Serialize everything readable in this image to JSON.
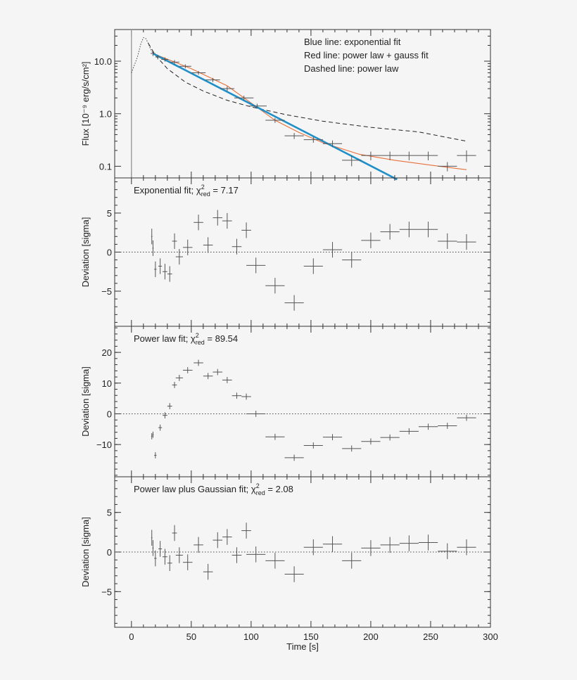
{
  "chart_data": [
    {
      "type": "line",
      "panel": "flux",
      "ylabel": "Flux [10⁻⁹ erg/s/cm²]",
      "y_scale": "log",
      "ylim": [
        0.06,
        40
      ],
      "xlim": [
        -14,
        300
      ],
      "yticks": [
        {
          "v": 0.1,
          "label": "0.1"
        },
        {
          "v": 1.0,
          "label": "1.0"
        },
        {
          "v": 10.0,
          "label": "10.0"
        }
      ],
      "legend": [
        "Blue line: exponential fit",
        "Red line: power law + gauss fit",
        "Dashed line: power law"
      ],
      "legend_placement": "top-right",
      "colors": {
        "exponential": "#1e8fc8",
        "powerlaw_gauss": "#e8703a",
        "powerlaw": "#222222",
        "data": "#444444"
      },
      "data": [
        {
          "x": 18,
          "xerr": 2,
          "y": 14.0,
          "yerr": 1.5
        },
        {
          "x": 22,
          "xerr": 2,
          "y": 12.0,
          "yerr": 1.2
        },
        {
          "x": 28,
          "xerr": 3,
          "y": 10.8,
          "yerr": 1.0
        },
        {
          "x": 36,
          "xerr": 4,
          "y": 9.6,
          "yerr": 0.9
        },
        {
          "x": 45,
          "xerr": 5,
          "y": 8.0,
          "yerr": 0.7
        },
        {
          "x": 56,
          "xerr": 6,
          "y": 6.0,
          "yerr": 0.5
        },
        {
          "x": 68,
          "xerr": 6,
          "y": 4.4,
          "yerr": 0.4
        },
        {
          "x": 80,
          "xerr": 6,
          "y": 3.0,
          "yerr": 0.3
        },
        {
          "x": 94,
          "xerr": 8,
          "y": 2.0,
          "yerr": 0.2
        },
        {
          "x": 105,
          "xerr": 8,
          "y": 1.4,
          "yerr": 0.15
        },
        {
          "x": 120,
          "xerr": 8,
          "y": 0.75,
          "yerr": 0.08
        },
        {
          "x": 136,
          "xerr": 8,
          "y": 0.38,
          "yerr": 0.05
        },
        {
          "x": 152,
          "xerr": 8,
          "y": 0.32,
          "yerr": 0.04
        },
        {
          "x": 168,
          "xerr": 8,
          "y": 0.27,
          "yerr": 0.04
        },
        {
          "x": 184,
          "xerr": 8,
          "y": 0.13,
          "yerr": 0.03
        },
        {
          "x": 200,
          "xerr": 8,
          "y": 0.16,
          "yerr": 0.03
        },
        {
          "x": 216,
          "xerr": 8,
          "y": 0.16,
          "yerr": 0.03
        },
        {
          "x": 232,
          "xerr": 8,
          "y": 0.16,
          "yerr": 0.03
        },
        {
          "x": 248,
          "xerr": 8,
          "y": 0.16,
          "yerr": 0.03
        },
        {
          "x": 264,
          "xerr": 8,
          "y": 0.1,
          "yerr": 0.02
        },
        {
          "x": 280,
          "xerr": 8,
          "y": 0.16,
          "yerr": 0.04
        }
      ],
      "precursor": [
        {
          "x": 0,
          "y": 6
        },
        {
          "x": 5,
          "y": 12
        },
        {
          "x": 8,
          "y": 22
        },
        {
          "x": 10,
          "y": 28
        },
        {
          "x": 12,
          "y": 27
        },
        {
          "x": 14,
          "y": 22
        },
        {
          "x": 16,
          "y": 17
        },
        {
          "x": 18,
          "y": 14
        }
      ],
      "exp_fit": [
        {
          "x": 18,
          "y": 14.0
        },
        {
          "x": 222,
          "y": 0.056
        }
      ],
      "pl_gauss_fit": [
        {
          "x": 18,
          "y": 14.0
        },
        {
          "x": 50,
          "y": 7.2
        },
        {
          "x": 80,
          "y": 3.4
        },
        {
          "x": 100,
          "y": 1.6
        },
        {
          "x": 120,
          "y": 0.75
        },
        {
          "x": 140,
          "y": 0.44
        },
        {
          "x": 160,
          "y": 0.28
        },
        {
          "x": 190,
          "y": 0.17
        },
        {
          "x": 220,
          "y": 0.13
        },
        {
          "x": 250,
          "y": 0.105
        },
        {
          "x": 280,
          "y": 0.086
        }
      ],
      "pl_fit": [
        {
          "x": 14,
          "y": 22
        },
        {
          "x": 20,
          "y": 13.0
        },
        {
          "x": 30,
          "y": 7.2
        },
        {
          "x": 45,
          "y": 4.0
        },
        {
          "x": 60,
          "y": 2.7
        },
        {
          "x": 80,
          "y": 1.8
        },
        {
          "x": 100,
          "y": 1.35
        },
        {
          "x": 130,
          "y": 0.95
        },
        {
          "x": 160,
          "y": 0.72
        },
        {
          "x": 200,
          "y": 0.55
        },
        {
          "x": 240,
          "y": 0.45
        },
        {
          "x": 280,
          "y": 0.3
        }
      ]
    },
    {
      "type": "scatter",
      "panel": "residual-exponential",
      "label_prefix": "Exponential fit; ",
      "chi_value": "7.17",
      "ylabel": "Deviation [sigma]",
      "ylim": [
        -9.5,
        9.5
      ],
      "xlim": [
        -14,
        300
      ],
      "yticks": [
        {
          "v": -5,
          "label": "−5"
        },
        {
          "v": 0,
          "label": "0"
        },
        {
          "v": 5,
          "label": "5"
        }
      ],
      "data": [
        {
          "x": 17,
          "xerr": 0.5,
          "y": 2.0,
          "yerr": 1.0
        },
        {
          "x": 18,
          "xerr": 0.5,
          "y": 0.5,
          "yerr": 1.0
        },
        {
          "x": 20,
          "xerr": 1,
          "y": -2.2,
          "yerr": 1.0
        },
        {
          "x": 24,
          "xerr": 1.5,
          "y": -1.8,
          "yerr": 1.0
        },
        {
          "x": 28,
          "xerr": 2,
          "y": -2.5,
          "yerr": 1.0
        },
        {
          "x": 32,
          "xerr": 2,
          "y": -2.8,
          "yerr": 1.0
        },
        {
          "x": 36,
          "xerr": 2,
          "y": 1.4,
          "yerr": 1.0
        },
        {
          "x": 40,
          "xerr": 3,
          "y": -0.6,
          "yerr": 1.0
        },
        {
          "x": 47,
          "xerr": 4,
          "y": 0.6,
          "yerr": 1.0
        },
        {
          "x": 56,
          "xerr": 4,
          "y": 3.8,
          "yerr": 1.0
        },
        {
          "x": 64,
          "xerr": 4,
          "y": 0.9,
          "yerr": 1.0
        },
        {
          "x": 72,
          "xerr": 4,
          "y": 4.4,
          "yerr": 1.0
        },
        {
          "x": 80,
          "xerr": 4,
          "y": 4.0,
          "yerr": 1.0
        },
        {
          "x": 88,
          "xerr": 4,
          "y": 0.7,
          "yerr": 1.0
        },
        {
          "x": 96,
          "xerr": 4,
          "y": 2.8,
          "yerr": 1.0
        },
        {
          "x": 104,
          "xerr": 8,
          "y": -1.7,
          "yerr": 1.0
        },
        {
          "x": 120,
          "xerr": 8,
          "y": -4.3,
          "yerr": 1.0
        },
        {
          "x": 136,
          "xerr": 8,
          "y": -6.5,
          "yerr": 1.0
        },
        {
          "x": 152,
          "xerr": 8,
          "y": -1.8,
          "yerr": 1.0
        },
        {
          "x": 168,
          "xerr": 8,
          "y": 0.3,
          "yerr": 1.0
        },
        {
          "x": 184,
          "xerr": 8,
          "y": -1.0,
          "yerr": 1.0
        },
        {
          "x": 200,
          "xerr": 8,
          "y": 1.5,
          "yerr": 1.0
        },
        {
          "x": 216,
          "xerr": 8,
          "y": 2.6,
          "yerr": 1.0
        },
        {
          "x": 232,
          "xerr": 8,
          "y": 2.9,
          "yerr": 1.0
        },
        {
          "x": 248,
          "xerr": 8,
          "y": 2.9,
          "yerr": 1.0
        },
        {
          "x": 264,
          "xerr": 8,
          "y": 1.4,
          "yerr": 1.0
        },
        {
          "x": 280,
          "xerr": 8,
          "y": 1.3,
          "yerr": 1.0
        }
      ]
    },
    {
      "type": "scatter",
      "panel": "residual-powerlaw",
      "label_prefix": "Power law fit; ",
      "chi_value": "89.54",
      "ylabel": "Deviation [sigma]",
      "ylim": [
        -20.5,
        28.5
      ],
      "xlim": [
        -14,
        300
      ],
      "yticks": [
        {
          "v": -10,
          "label": "−10"
        },
        {
          "v": 0,
          "label": "0"
        },
        {
          "v": 10,
          "label": "10"
        },
        {
          "v": 20,
          "label": "20"
        }
      ],
      "data": [
        {
          "x": 17,
          "xerr": 0.5,
          "y": -7.3,
          "yerr": 1.0
        },
        {
          "x": 18,
          "xerr": 0.5,
          "y": -6.8,
          "yerr": 1.0
        },
        {
          "x": 20,
          "xerr": 1,
          "y": -13.5,
          "yerr": 1.0
        },
        {
          "x": 24,
          "xerr": 1.5,
          "y": -4.5,
          "yerr": 1.0
        },
        {
          "x": 28,
          "xerr": 2,
          "y": -0.5,
          "yerr": 1.0
        },
        {
          "x": 32,
          "xerr": 2,
          "y": 2.5,
          "yerr": 1.0
        },
        {
          "x": 36,
          "xerr": 2,
          "y": 9.4,
          "yerr": 1.0
        },
        {
          "x": 40,
          "xerr": 3,
          "y": 11.7,
          "yerr": 1.0
        },
        {
          "x": 47,
          "xerr": 4,
          "y": 14.2,
          "yerr": 1.0
        },
        {
          "x": 56,
          "xerr": 4,
          "y": 16.6,
          "yerr": 1.0
        },
        {
          "x": 64,
          "xerr": 4,
          "y": 12.3,
          "yerr": 1.0
        },
        {
          "x": 72,
          "xerr": 4,
          "y": 13.6,
          "yerr": 1.0
        },
        {
          "x": 80,
          "xerr": 4,
          "y": 11.0,
          "yerr": 1.0
        },
        {
          "x": 88,
          "xerr": 4,
          "y": 5.9,
          "yerr": 1.0
        },
        {
          "x": 96,
          "xerr": 4,
          "y": 5.6,
          "yerr": 1.0
        },
        {
          "x": 104,
          "xerr": 8,
          "y": 0.0,
          "yerr": 1.0
        },
        {
          "x": 120,
          "xerr": 8,
          "y": -7.5,
          "yerr": 1.0
        },
        {
          "x": 136,
          "xerr": 8,
          "y": -14.3,
          "yerr": 1.0
        },
        {
          "x": 152,
          "xerr": 8,
          "y": -10.3,
          "yerr": 1.0
        },
        {
          "x": 168,
          "xerr": 8,
          "y": -7.6,
          "yerr": 1.0
        },
        {
          "x": 184,
          "xerr": 8,
          "y": -11.3,
          "yerr": 1.0
        },
        {
          "x": 200,
          "xerr": 8,
          "y": -9.0,
          "yerr": 1.0
        },
        {
          "x": 216,
          "xerr": 8,
          "y": -7.7,
          "yerr": 1.0
        },
        {
          "x": 232,
          "xerr": 8,
          "y": -5.7,
          "yerr": 1.0
        },
        {
          "x": 248,
          "xerr": 8,
          "y": -4.2,
          "yerr": 1.0
        },
        {
          "x": 264,
          "xerr": 8,
          "y": -3.9,
          "yerr": 1.0
        },
        {
          "x": 280,
          "xerr": 8,
          "y": -1.3,
          "yerr": 1.0
        }
      ]
    },
    {
      "type": "scatter",
      "panel": "residual-powerlaw-gauss",
      "label_prefix": "Power law plus Gaussian fit; ",
      "chi_value": "2.08",
      "ylabel": "Deviation [sigma]",
      "xlabel": "Time [s]",
      "ylim": [
        -9.5,
        9.5
      ],
      "xlim": [
        -14,
        300
      ],
      "yticks": [
        {
          "v": -5,
          "label": "−5"
        },
        {
          "v": 0,
          "label": "0"
        },
        {
          "v": 5,
          "label": "5"
        }
      ],
      "xticks": [
        {
          "v": 0,
          "label": "0"
        },
        {
          "v": 50,
          "label": "50"
        },
        {
          "v": 100,
          "label": "100"
        },
        {
          "v": 150,
          "label": "150"
        },
        {
          "v": 200,
          "label": "200"
        },
        {
          "v": 250,
          "label": "250"
        },
        {
          "v": 300,
          "label": "300"
        }
      ],
      "data": [
        {
          "x": 17,
          "xerr": 0.5,
          "y": 1.8,
          "yerr": 1.0
        },
        {
          "x": 18,
          "xerr": 0.5,
          "y": 0.5,
          "yerr": 1.0
        },
        {
          "x": 20,
          "xerr": 1,
          "y": -0.8,
          "yerr": 1.0
        },
        {
          "x": 24,
          "xerr": 1.5,
          "y": 0.4,
          "yerr": 1.0
        },
        {
          "x": 28,
          "xerr": 2,
          "y": -0.6,
          "yerr": 1.0
        },
        {
          "x": 32,
          "xerr": 2,
          "y": -1.4,
          "yerr": 1.0
        },
        {
          "x": 36,
          "xerr": 2,
          "y": 2.4,
          "yerr": 1.0
        },
        {
          "x": 40,
          "xerr": 3,
          "y": -0.4,
          "yerr": 1.0
        },
        {
          "x": 47,
          "xerr": 4,
          "y": -1.3,
          "yerr": 1.0
        },
        {
          "x": 56,
          "xerr": 4,
          "y": 0.9,
          "yerr": 1.0
        },
        {
          "x": 64,
          "xerr": 4,
          "y": -2.5,
          "yerr": 1.0
        },
        {
          "x": 72,
          "xerr": 4,
          "y": 1.5,
          "yerr": 1.0
        },
        {
          "x": 80,
          "xerr": 4,
          "y": 1.9,
          "yerr": 1.0
        },
        {
          "x": 88,
          "xerr": 4,
          "y": -0.4,
          "yerr": 1.0
        },
        {
          "x": 96,
          "xerr": 4,
          "y": 2.7,
          "yerr": 1.0
        },
        {
          "x": 104,
          "xerr": 8,
          "y": -0.3,
          "yerr": 1.0
        },
        {
          "x": 120,
          "xerr": 8,
          "y": -1.1,
          "yerr": 1.0
        },
        {
          "x": 136,
          "xerr": 8,
          "y": -2.8,
          "yerr": 1.0
        },
        {
          "x": 152,
          "xerr": 8,
          "y": 0.6,
          "yerr": 1.0
        },
        {
          "x": 168,
          "xerr": 8,
          "y": 1.0,
          "yerr": 1.0
        },
        {
          "x": 184,
          "xerr": 8,
          "y": -1.1,
          "yerr": 1.0
        },
        {
          "x": 200,
          "xerr": 8,
          "y": 0.5,
          "yerr": 1.0
        },
        {
          "x": 216,
          "xerr": 8,
          "y": 0.9,
          "yerr": 1.0
        },
        {
          "x": 232,
          "xerr": 8,
          "y": 1.1,
          "yerr": 1.0
        },
        {
          "x": 248,
          "xerr": 8,
          "y": 1.2,
          "yerr": 1.0
        },
        {
          "x": 264,
          "xerr": 8,
          "y": 0.1,
          "yerr": 1.0
        },
        {
          "x": 280,
          "xerr": 8,
          "y": 0.6,
          "yerr": 1.0
        }
      ]
    }
  ]
}
